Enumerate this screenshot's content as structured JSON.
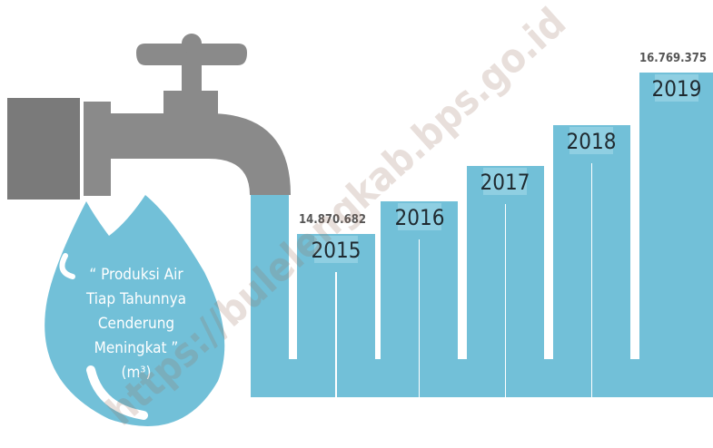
{
  "watermark": "https://bulelengkab.bps.go.id",
  "drop": {
    "lines": [
      "“ Produksi Air",
      "Tiap Tahunnya",
      "Cenderung",
      "Meningkat ”",
      "(m³)"
    ]
  },
  "years": [
    {
      "year": "2015",
      "value": "14.870.682"
    },
    {
      "year": "2016"
    },
    {
      "year": "2017"
    },
    {
      "year": "2018"
    },
    {
      "year": "2019",
      "value": "16.769.375"
    }
  ]
}
